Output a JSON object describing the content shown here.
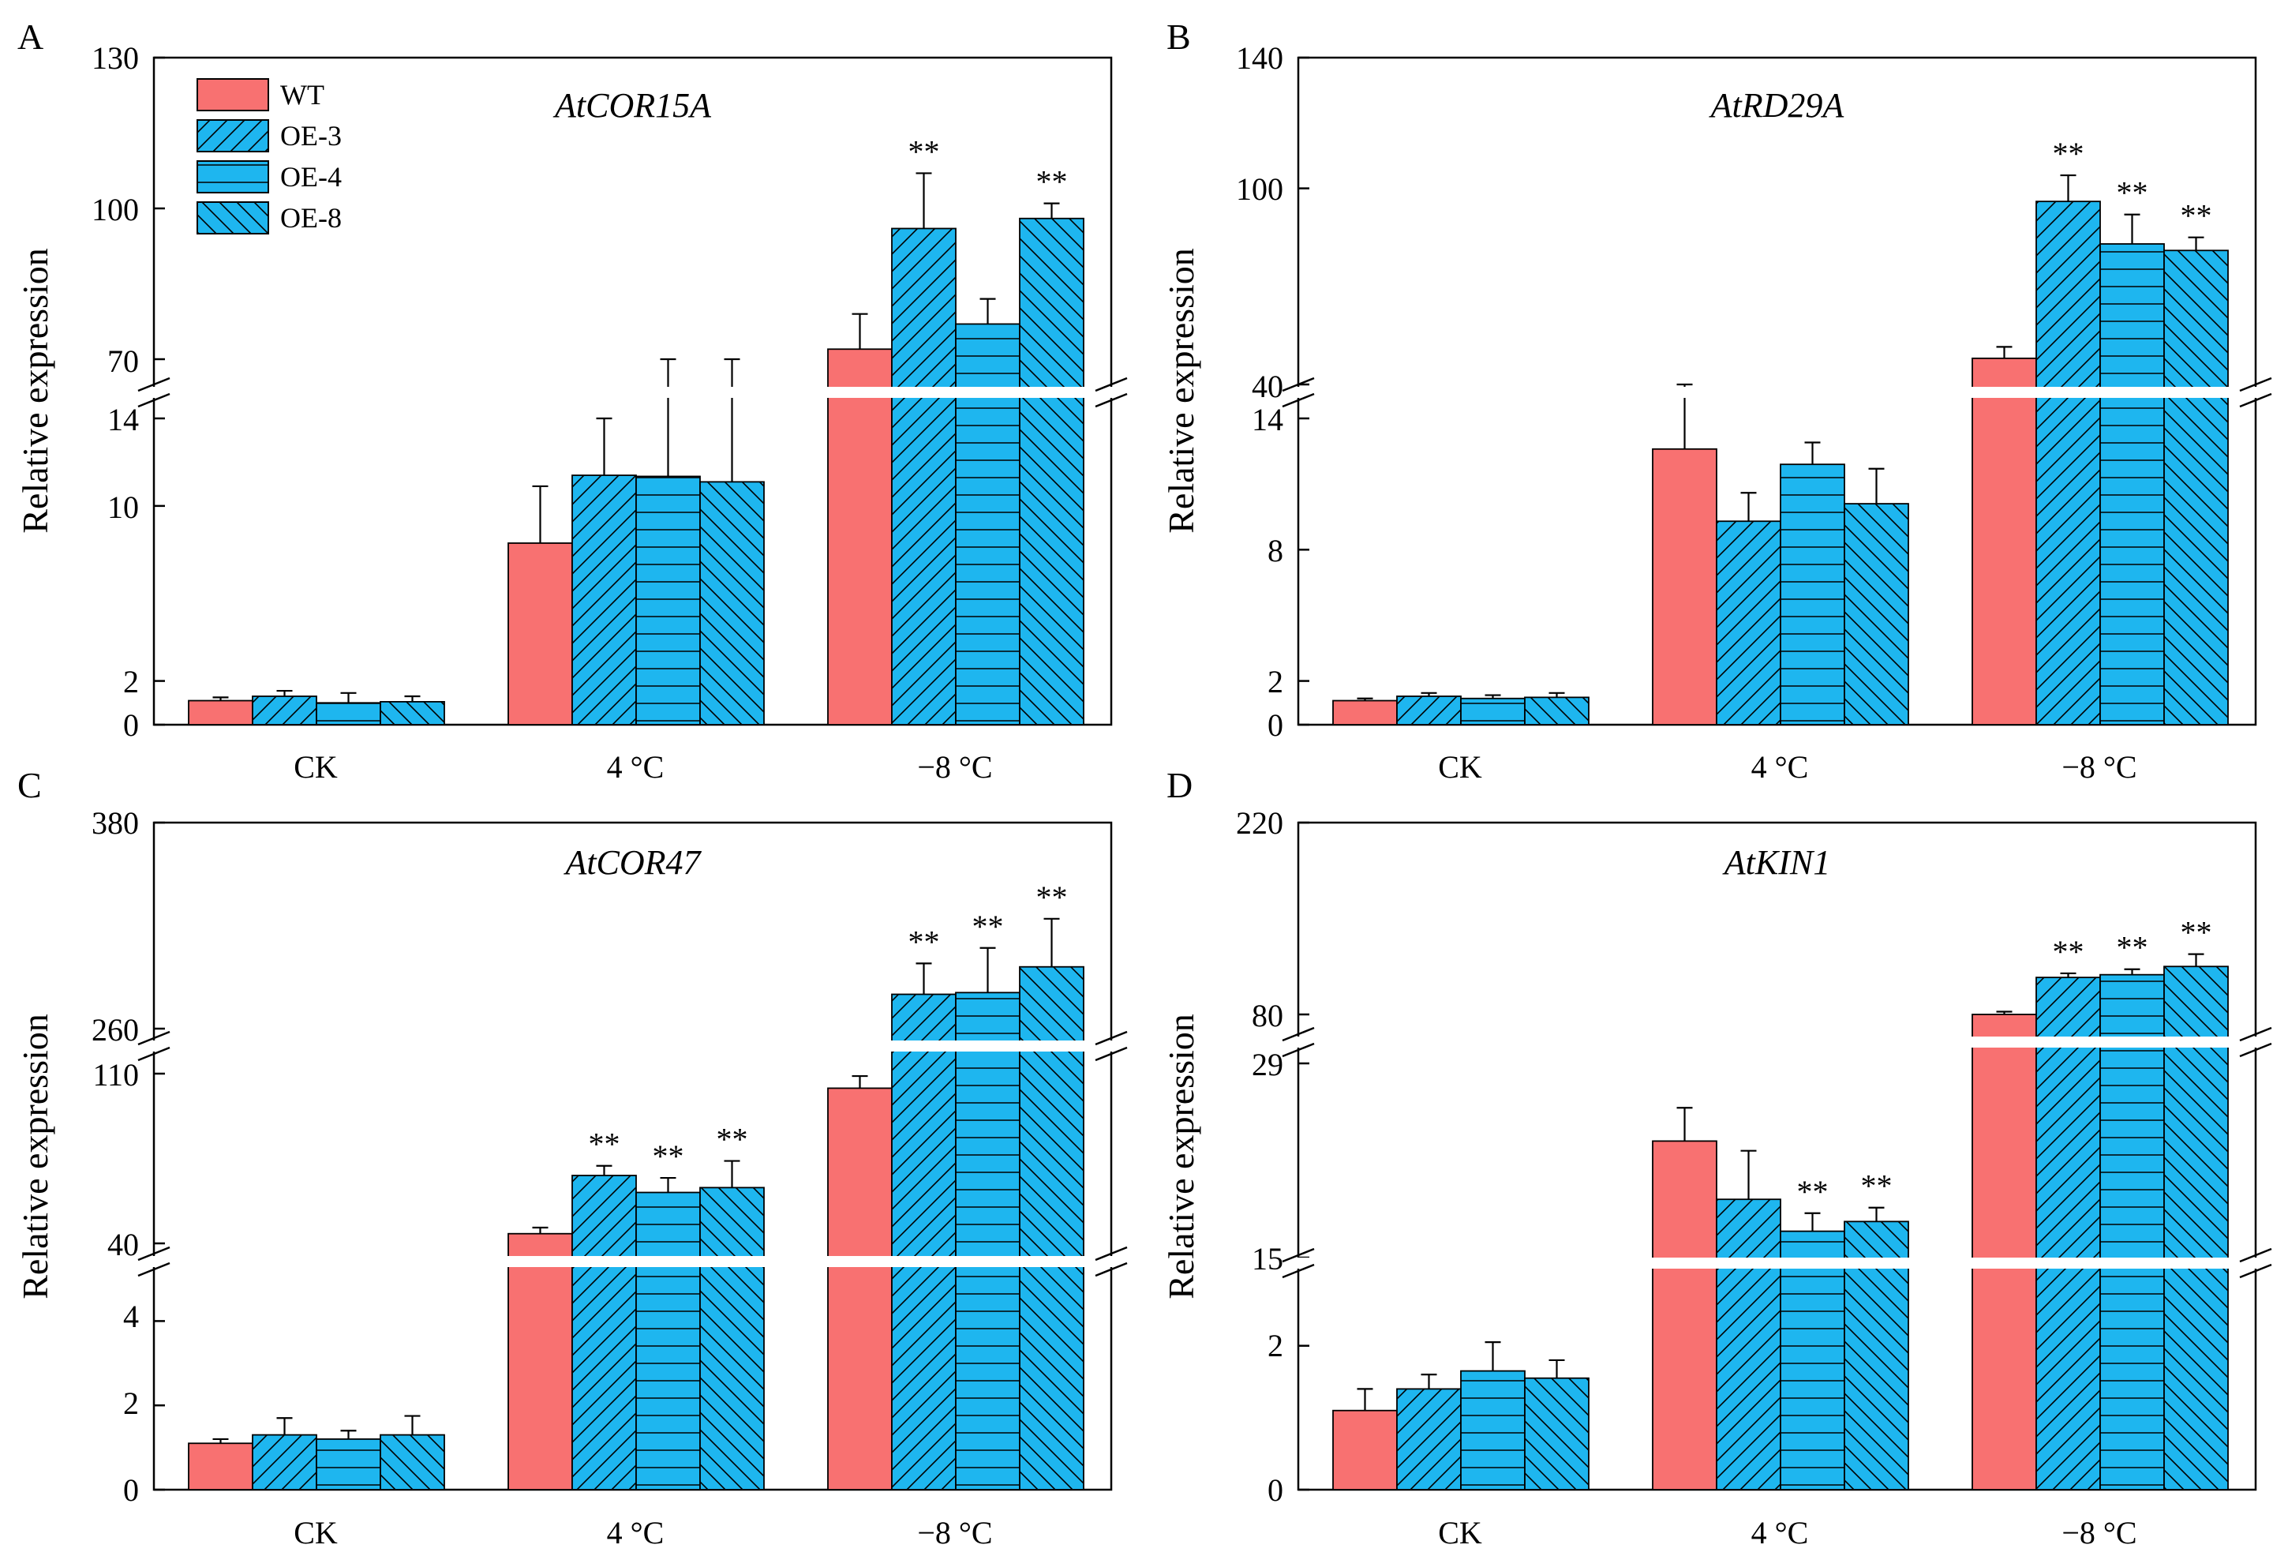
{
  "colors": {
    "wt": "#f87171",
    "oe": "#1eb6ef",
    "stroke": "#000000",
    "break": "#ffffff"
  },
  "legend": [
    {
      "name": "WT",
      "pattern": "solid-red"
    },
    {
      "name": "OE-3",
      "pattern": "hatch-forward"
    },
    {
      "name": "OE-4",
      "pattern": "hatch-horizontal"
    },
    {
      "name": "OE-8",
      "pattern": "hatch-backward"
    }
  ],
  "chart_data": [
    {
      "letter": "A",
      "type": "bar",
      "title": "AtCOR15A",
      "ylabel": "Relative expression",
      "categories": [
        "CK",
        "4 °C",
        "−8 °C"
      ],
      "segments": [
        {
          "range": [
            0,
            14
          ],
          "ticks": [
            "0",
            "2",
            "10",
            "14"
          ]
        },
        {
          "range": [
            70,
            130
          ],
          "ticks": [
            "70",
            "100",
            "130"
          ]
        }
      ],
      "series": [
        {
          "name": "WT",
          "values": [
            1.1,
            8.3,
            72
          ],
          "errors": [
            0.15,
            2.6,
            7
          ],
          "sig": [
            "",
            "",
            ""
          ]
        },
        {
          "name": "OE-3",
          "values": [
            1.3,
            11.4,
            96
          ],
          "errors": [
            0.25,
            2.6,
            11
          ],
          "sig": [
            "",
            "",
            "**"
          ]
        },
        {
          "name": "OE-4",
          "values": [
            1.0,
            11.35,
            77
          ],
          "errors": [
            0.45,
            3.0,
            5
          ],
          "sig": [
            "",
            "",
            ""
          ]
        },
        {
          "name": "OE-8",
          "values": [
            1.05,
            11.1,
            98
          ],
          "errors": [
            0.25,
            3.3,
            3
          ],
          "sig": [
            "",
            "",
            "**"
          ]
        }
      ]
    },
    {
      "letter": "B",
      "type": "bar",
      "title": "AtRD29A",
      "ylabel": "Relative expression",
      "categories": [
        "CK",
        "4 °C",
        "−8 °C"
      ],
      "segments": [
        {
          "range": [
            0,
            14
          ],
          "ticks": [
            "0",
            "2",
            "8",
            "14"
          ]
        },
        {
          "range": [
            40,
            140
          ],
          "ticks": [
            "40",
            "100",
            "140"
          ]
        }
      ],
      "series": [
        {
          "name": "WT",
          "values": [
            1.1,
            12.6,
            48
          ],
          "errors": [
            0.1,
            1.5,
            3.5
          ],
          "sig": [
            "",
            "",
            ""
          ]
        },
        {
          "name": "OE-3",
          "values": [
            1.3,
            9.3,
            96
          ],
          "errors": [
            0.15,
            1.3,
            8
          ],
          "sig": [
            "",
            "",
            "**"
          ]
        },
        {
          "name": "OE-4",
          "values": [
            1.2,
            11.9,
            83
          ],
          "errors": [
            0.15,
            1.0,
            9
          ],
          "sig": [
            "",
            "",
            "**"
          ]
        },
        {
          "name": "OE-8",
          "values": [
            1.25,
            10.1,
            81
          ],
          "errors": [
            0.2,
            1.6,
            4
          ],
          "sig": [
            "",
            "",
            "**"
          ]
        }
      ]
    },
    {
      "letter": "C",
      "type": "bar",
      "title": "AtCOR47",
      "ylabel": "Relative expression",
      "categories": [
        "CK",
        "4 °C",
        "−8 °C"
      ],
      "segments": [
        {
          "range": [
            0,
            5
          ],
          "ticks": [
            "0",
            "2",
            "4"
          ]
        },
        {
          "range": [
            40,
            110
          ],
          "ticks": [
            "40",
            "110"
          ]
        },
        {
          "range": [
            260,
            380
          ],
          "ticks": [
            "260",
            "380"
          ]
        }
      ],
      "series": [
        {
          "name": "WT",
          "values": [
            1.1,
            44,
            104
          ],
          "errors": [
            0.1,
            2.5,
            5
          ],
          "sig": [
            "",
            "",
            ""
          ]
        },
        {
          "name": "OE-3",
          "values": [
            1.3,
            68,
            280
          ],
          "errors": [
            0.4,
            4,
            18
          ],
          "sig": [
            "",
            "**",
            "**"
          ]
        },
        {
          "name": "OE-4",
          "values": [
            1.2,
            61,
            281
          ],
          "errors": [
            0.2,
            6,
            26
          ],
          "sig": [
            "",
            "**",
            "**"
          ]
        },
        {
          "name": "OE-8",
          "values": [
            1.3,
            63,
            296
          ],
          "errors": [
            0.45,
            11,
            28
          ],
          "sig": [
            "",
            "**",
            "**"
          ]
        }
      ]
    },
    {
      "letter": "D",
      "type": "bar",
      "title": "AtKIN1",
      "ylabel": "Relative expression",
      "categories": [
        "CK",
        "4 °C",
        "−8 °C"
      ],
      "segments": [
        {
          "range": [
            0,
            2.6
          ],
          "ticks": [
            "0",
            "2"
          ]
        },
        {
          "range": [
            15,
            29
          ],
          "ticks": [
            "15",
            "29"
          ]
        },
        {
          "range": [
            80,
            220
          ],
          "ticks": [
            "80",
            "220"
          ]
        }
      ],
      "series": [
        {
          "name": "WT",
          "values": [
            1.1,
            23.4,
            78
          ],
          "errors": [
            0.3,
            2.4,
            4
          ],
          "sig": [
            "",
            "",
            ""
          ]
        },
        {
          "name": "OE-3",
          "values": [
            1.4,
            19.2,
            107
          ],
          "errors": [
            0.2,
            3.5,
            3
          ],
          "sig": [
            "",
            "",
            "**"
          ]
        },
        {
          "name": "OE-4",
          "values": [
            1.65,
            16.9,
            109
          ],
          "errors": [
            0.4,
            1.3,
            4
          ],
          "sig": [
            "",
            "**",
            "**"
          ]
        },
        {
          "name": "OE-8",
          "values": [
            1.55,
            17.6,
            115
          ],
          "errors": [
            0.25,
            1.0,
            9
          ],
          "sig": [
            "",
            "**",
            "**"
          ]
        }
      ]
    }
  ]
}
